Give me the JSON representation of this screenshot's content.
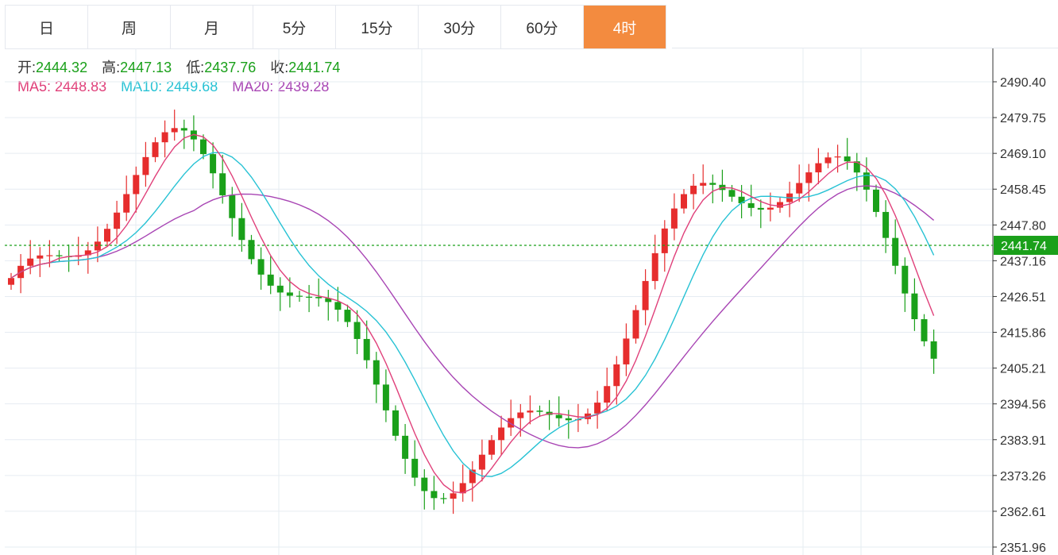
{
  "tabs": [
    {
      "label": "日",
      "active": false
    },
    {
      "label": "周",
      "active": false
    },
    {
      "label": "月",
      "active": false
    },
    {
      "label": "5分",
      "active": false
    },
    {
      "label": "15分",
      "active": false
    },
    {
      "label": "30分",
      "active": false
    },
    {
      "label": "60分",
      "active": false
    },
    {
      "label": "4时",
      "active": true
    }
  ],
  "readout": {
    "open_label": "开:",
    "open": "2444.32",
    "high_label": "高:",
    "high": "2447.13",
    "low_label": "低:",
    "low": "2437.76",
    "close_label": "收:",
    "close": "2441.74",
    "ma5_label": "MA5:",
    "ma5": "2448.83",
    "ma10_label": "MA10:",
    "ma10": "2449.68",
    "ma20_label": "MA20:",
    "ma20": "2439.28"
  },
  "colors": {
    "up": "#e62d2d",
    "down": "#1aa01a",
    "ma5": "#e0407a",
    "ma10": "#27c2d4",
    "ma20": "#a845b4",
    "grid": "#e6ecf2",
    "current": "#1aa01a",
    "tab_active": "#f38b3f"
  },
  "chart_data": {
    "type": "candlestick",
    "ylim": [
      2351.96,
      2490.4
    ],
    "yticks": [
      "2490.40",
      "2479.75",
      "2469.10",
      "2458.45",
      "2447.80",
      "2437.16",
      "2426.51",
      "2415.86",
      "2405.21",
      "2394.56",
      "2383.91",
      "2373.26",
      "2362.61",
      "2351.96"
    ],
    "current_price": "2441.74",
    "candles": [],
    "ma5": [],
    "ma10": [],
    "ma20": []
  }
}
